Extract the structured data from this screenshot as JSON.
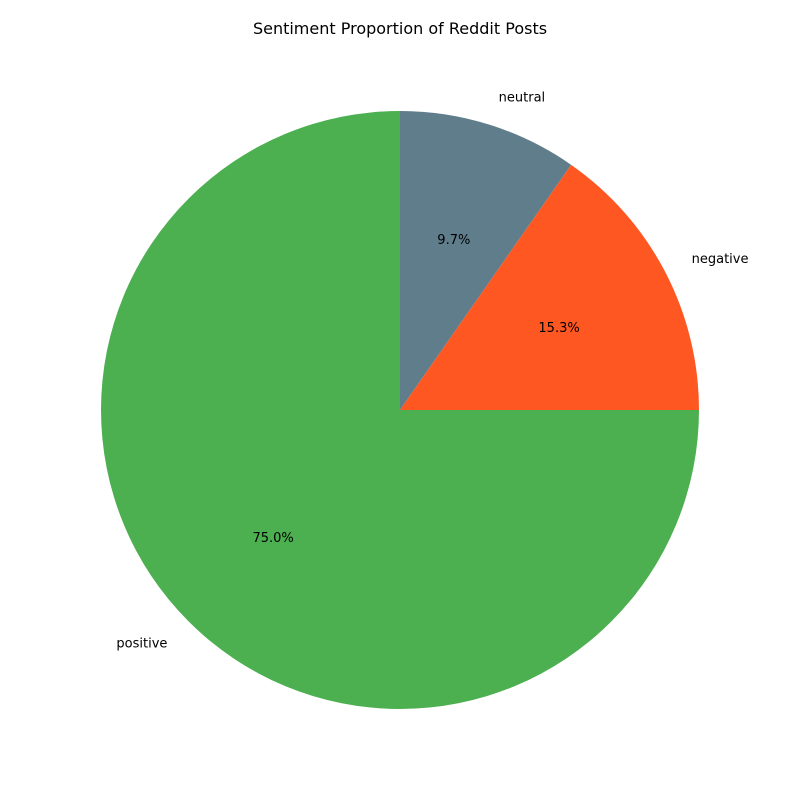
{
  "chart_data": {
    "type": "pie",
    "title": "Sentiment Proportion of Reddit Posts",
    "start_angle_deg": 90,
    "direction": "clockwise",
    "slices": [
      {
        "label": "neutral",
        "value": 9.7,
        "pct_label": "9.7%",
        "color": "#607d8b"
      },
      {
        "label": "negative",
        "value": 15.3,
        "pct_label": "15.3%",
        "color": "#ff5722"
      },
      {
        "label": "positive",
        "value": 75.0,
        "pct_label": "75.0%",
        "color": "#4caf50"
      }
    ]
  }
}
